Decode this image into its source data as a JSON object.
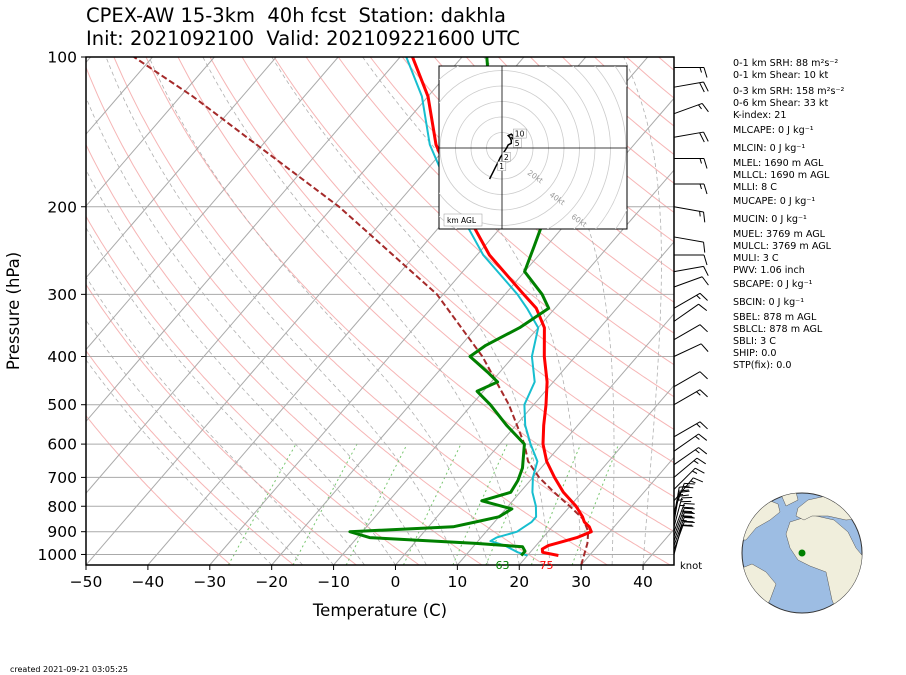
{
  "title": {
    "line1": "CPEX-AW 15-3km  40h fcst  Station: dakhla",
    "line2": "Init: 2021092100  Valid: 202109221600 UTC"
  },
  "chart_data": {
    "type": "line",
    "subtype": "skew-T log-p",
    "xlabel": "Temperature (C)",
    "ylabel": "Pressure (hPa)",
    "xlim": [
      -50,
      45
    ],
    "ylim": [
      1050,
      100
    ],
    "y_scale": "log",
    "x_ticks": [
      "−50",
      "−40",
      "−30",
      "−20",
      "−10",
      "0",
      "10",
      "20",
      "30",
      "40"
    ],
    "x_tick_values": [
      -50,
      -40,
      -30,
      -20,
      -10,
      0,
      10,
      20,
      30,
      40
    ],
    "y_ticks": [
      100,
      200,
      300,
      400,
      500,
      600,
      700,
      800,
      900,
      1000
    ],
    "grid": true,
    "colors": {
      "temperature": "#ff0000",
      "dewpoint": "#17becf",
      "theta_e": "#008000",
      "parcel": "#a52a2a",
      "dry_adiabat": "#f4a3a3",
      "moist_adiabat": "#b0b0b0",
      "mixing_ratio": "#77c66e",
      "isotherm": "#aaaaaa"
    },
    "series": [
      {
        "key": "temperature",
        "p": [
          1005,
          990,
          975,
          960,
          940,
          925,
          900,
          880,
          860,
          840,
          800,
          750,
          700,
          650,
          600,
          550,
          500,
          450,
          400,
          350,
          320,
          300,
          250,
          200,
          150,
          120,
          100
        ],
        "values": [
          25.0,
          22.0,
          21.5,
          22.0,
          24.0,
          25.5,
          27.0,
          26.0,
          24.5,
          23.5,
          21.0,
          17.0,
          13.5,
          10.0,
          7.0,
          4.5,
          2.0,
          -1.0,
          -5.0,
          -9.0,
          -13.0,
          -17.0,
          -28.0,
          -39.0,
          -52.0,
          -60.0,
          -68.0
        ]
      },
      {
        "key": "dewpoint",
        "p": [
          1005,
          990,
          975,
          960,
          940,
          925,
          900,
          880,
          860,
          840,
          800,
          750,
          700,
          650,
          600,
          550,
          500,
          450,
          400,
          350,
          320,
          300,
          250,
          200,
          150,
          120,
          100
        ],
        "values": [
          20.0,
          18.0,
          16.5,
          15.0,
          12.0,
          12.5,
          15.0,
          15.5,
          16.0,
          16.0,
          14.5,
          12.0,
          10.0,
          8.5,
          5.0,
          1.5,
          -1.5,
          -3.0,
          -7.0,
          -10.0,
          -14.5,
          -18.0,
          -29.0,
          -40.0,
          -53.0,
          -61.0,
          -69.0
        ]
      },
      {
        "key": "theta_e",
        "p": [
          1005,
          985,
          965,
          950,
          925,
          900,
          880,
          860,
          840,
          810,
          780,
          750,
          710,
          670,
          600,
          550,
          500,
          470,
          450,
          430,
          400,
          380,
          350,
          320,
          300,
          270,
          240,
          220,
          200,
          170,
          150,
          135,
          120,
          100
        ],
        "values": [
          19.0,
          19.0,
          18.0,
          10.0,
          -8.0,
          -12.0,
          4.0,
          7.0,
          10.0,
          11.0,
          5.0,
          8.5,
          8.0,
          7.0,
          4.0,
          -1.5,
          -7.0,
          -11.0,
          -9.0,
          -12.0,
          -17.0,
          -16.0,
          -13.0,
          -11.0,
          -14.0,
          -20.0,
          -22.0,
          -23.5,
          -26.0,
          -30.0,
          -37.0,
          -44.0,
          -50.0,
          -56.0
        ]
      },
      {
        "key": "parcel",
        "p": [
          1050,
          950,
          900,
          850,
          800,
          750,
          700,
          650,
          600,
          500,
          400,
          300,
          200,
          150,
          120,
          100
        ],
        "values": [
          30.0,
          28.0,
          26.5,
          24.0,
          20.0,
          15.5,
          11.0,
          7.0,
          4.0,
          -4.0,
          -15.0,
          -31.0,
          -59.0,
          -81.0,
          -98.0,
          -113.0
        ]
      }
    ],
    "surface_labels": [
      {
        "text": "63",
        "x": 17.3,
        "color": "#008000"
      },
      {
        "text": "75",
        "x": 24.4,
        "color": "#ff0000"
      }
    ],
    "wind_unit_label": "knot",
    "wind_barbs": [
      {
        "p": 1000,
        "speed": 10,
        "dir": 15
      },
      {
        "p": 980,
        "speed": 20,
        "dir": 20
      },
      {
        "p": 960,
        "speed": 25,
        "dir": 20
      },
      {
        "p": 940,
        "speed": 25,
        "dir": 20
      },
      {
        "p": 920,
        "speed": 30,
        "dir": 20
      },
      {
        "p": 900,
        "speed": 30,
        "dir": 20
      },
      {
        "p": 880,
        "speed": 25,
        "dir": 15
      },
      {
        "p": 860,
        "speed": 25,
        "dir": 10
      },
      {
        "p": 840,
        "speed": 25,
        "dir": 10
      },
      {
        "p": 820,
        "speed": 20,
        "dir": 20
      },
      {
        "p": 780,
        "speed": 15,
        "dir": 40
      },
      {
        "p": 740,
        "speed": 15,
        "dir": 45
      },
      {
        "p": 700,
        "speed": 15,
        "dir": 50
      },
      {
        "p": 660,
        "speed": 15,
        "dir": 55
      },
      {
        "p": 620,
        "speed": 15,
        "dir": 55
      },
      {
        "p": 580,
        "speed": 15,
        "dir": 60
      },
      {
        "p": 500,
        "speed": 15,
        "dir": 60
      },
      {
        "p": 460,
        "speed": 10,
        "dir": 60
      },
      {
        "p": 400,
        "speed": 10,
        "dir": 65
      },
      {
        "p": 370,
        "speed": 10,
        "dir": 60
      },
      {
        "p": 340,
        "speed": 10,
        "dir": 55
      },
      {
        "p": 320,
        "speed": 15,
        "dir": 60
      },
      {
        "p": 290,
        "speed": 10,
        "dir": 70
      },
      {
        "p": 270,
        "speed": 10,
        "dir": 80
      },
      {
        "p": 250,
        "speed": 10,
        "dir": 90
      },
      {
        "p": 230,
        "speed": 10,
        "dir": 100
      },
      {
        "p": 200,
        "speed": 15,
        "dir": 100
      },
      {
        "p": 180,
        "speed": 15,
        "dir": 90
      },
      {
        "p": 160,
        "speed": 15,
        "dir": 90
      },
      {
        "p": 145,
        "speed": 20,
        "dir": 80
      },
      {
        "p": 130,
        "speed": 15,
        "dir": 70
      },
      {
        "p": 115,
        "speed": 20,
        "dir": 80
      },
      {
        "p": 105,
        "speed": 15,
        "dir": 90
      }
    ],
    "hodograph": {
      "ring_labels": [
        "20kt",
        "40kt",
        "60kt",
        "80kt"
      ],
      "height_labels": [
        "1",
        "2",
        "5",
        "10"
      ],
      "legend": "km AGL",
      "u_kt": [
        -8,
        -7,
        -6,
        -4,
        -3,
        -2,
        -1,
        1,
        3,
        4,
        6,
        6,
        5,
        4,
        6,
        7,
        8,
        9,
        8,
        7,
        6
      ],
      "v_kt": [
        -20,
        -18,
        -16,
        -12,
        -10,
        -8,
        -6,
        -3,
        0,
        2,
        3,
        5,
        7,
        8,
        9,
        8,
        6,
        4,
        5,
        6,
        7
      ]
    }
  },
  "indices": [
    "0-1 km SRH: 88 m²s⁻²",
    "0-1 km Shear: 10 kt",
    "0-3 km SRH: 158 m²s⁻²",
    "0-6 km Shear: 33 kt",
    "K-index: 21",
    "MLCAPE: 0 J kg⁻¹",
    "MLCIN: 0 J kg⁻¹",
    "MLEL: 1690 m AGL",
    "MLLCL: 1690 m AGL",
    "MLLI: 8 C",
    "MUCAPE: 0 J kg⁻¹",
    "MUCIN: 0 J kg⁻¹",
    "MUEL: 3769 m AGL",
    "MULCL: 3769 m AGL",
    "MULI: 3 C",
    "PWV: 1.06 inch",
    "SBCAPE: 0 J kg⁻¹",
    "SBCIN: 0 J kg⁻¹",
    "SBEL: 878 m AGL",
    "SBLCL: 878 m AGL",
    "SBLI: 3 C",
    "SHIP: 0.0",
    "STP(fix): 0.0"
  ],
  "globe": {
    "land": "#f0eedc",
    "ocean": "#9dbde3",
    "marker": "#008000"
  },
  "created": "created 2021-09-21 03:05:25"
}
